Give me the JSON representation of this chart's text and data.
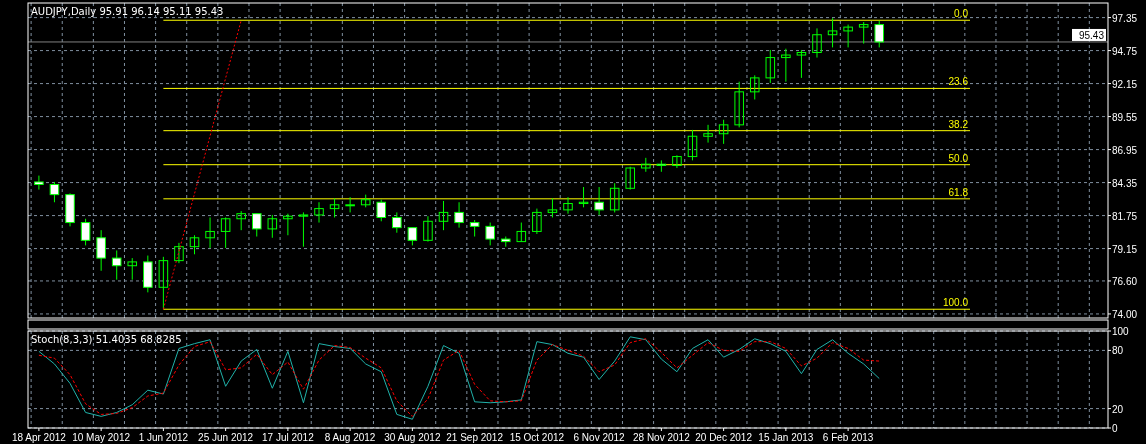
{
  "chart_data": [
    {
      "type": "candlestick",
      "title": "AUDJPY,Daily  95.91 96.14 95.11 95.43",
      "categories": [
        null,
        null,
        null,
        null,
        null,
        null,
        null,
        null,
        null,
        null,
        null,
        null,
        null,
        null,
        null,
        null,
        null,
        null,
        null,
        null,
        null,
        null,
        null,
        null,
        null,
        null,
        null,
        null,
        null,
        null,
        null,
        null,
        null,
        null,
        null,
        null,
        null,
        null,
        null,
        null,
        null,
        null,
        null,
        null,
        null,
        null,
        null,
        null,
        null,
        null,
        null,
        null,
        null,
        null,
        null,
        null,
        null,
        null,
        null,
        null,
        null,
        null,
        null,
        null,
        null,
        null,
        null,
        null,
        null
      ],
      "color": "#00ff00",
      "ohlc": [
        [
          84.4,
          84.9,
          83.8,
          84.2
        ],
        [
          84.2,
          84.4,
          82.8,
          83.4
        ],
        [
          83.4,
          83.5,
          80.9,
          81.2
        ],
        [
          81.2,
          81.5,
          79.4,
          79.8
        ],
        [
          80.0,
          80.6,
          77.4,
          78.4
        ],
        [
          78.4,
          79.0,
          76.7,
          77.8
        ],
        [
          77.8,
          78.4,
          76.7,
          78.1
        ],
        [
          78.1,
          78.6,
          75.7,
          76.1
        ],
        [
          76.1,
          78.5,
          74.4,
          78.2
        ],
        [
          78.2,
          79.6,
          78.0,
          79.3
        ],
        [
          79.3,
          80.2,
          78.7,
          80.0
        ],
        [
          80.0,
          81.6,
          79.2,
          80.5
        ],
        [
          80.5,
          81.6,
          79.2,
          81.5
        ],
        [
          81.5,
          82.1,
          80.6,
          81.9
        ],
        [
          81.9,
          81.9,
          80.1,
          80.7
        ],
        [
          80.7,
          81.8,
          80.0,
          81.5
        ],
        [
          81.5,
          81.9,
          80.2,
          81.7
        ],
        [
          81.7,
          82.0,
          79.3,
          81.8
        ],
        [
          81.8,
          82.8,
          81.2,
          82.3
        ],
        [
          82.3,
          83.1,
          81.6,
          82.6
        ],
        [
          82.6,
          83.2,
          82.0,
          82.6
        ],
        [
          82.6,
          83.4,
          82.4,
          83.0
        ],
        [
          82.8,
          83.0,
          81.3,
          81.6
        ],
        [
          81.6,
          82.0,
          80.4,
          80.8
        ],
        [
          80.8,
          80.8,
          79.4,
          79.8
        ],
        [
          79.8,
          81.7,
          79.7,
          81.3
        ],
        [
          81.3,
          82.9,
          80.6,
          82.0
        ],
        [
          82.0,
          82.8,
          80.8,
          81.2
        ],
        [
          81.2,
          81.4,
          80.1,
          80.9
        ],
        [
          80.9,
          81.2,
          79.4,
          79.9
        ],
        [
          79.9,
          80.1,
          79.3,
          79.7
        ],
        [
          79.7,
          81.2,
          79.7,
          80.5
        ],
        [
          80.5,
          82.3,
          80.3,
          82.0
        ],
        [
          82.0,
          83.1,
          81.6,
          82.2
        ],
        [
          82.2,
          83.2,
          81.9,
          82.7
        ],
        [
          82.7,
          84.0,
          82.4,
          82.8
        ],
        [
          82.8,
          84.0,
          81.8,
          82.2
        ],
        [
          82.2,
          84.3,
          82.0,
          83.9
        ],
        [
          83.9,
          85.6,
          83.8,
          85.5
        ],
        [
          85.5,
          86.3,
          85.2,
          85.8
        ],
        [
          85.8,
          86.1,
          85.2,
          85.7
        ],
        [
          85.7,
          86.5,
          85.5,
          86.4
        ],
        [
          86.4,
          88.5,
          86.1,
          88.0
        ],
        [
          88.0,
          88.9,
          87.5,
          88.2
        ],
        [
          88.2,
          89.3,
          87.4,
          88.9
        ],
        [
          88.9,
          92.3,
          88.7,
          91.5
        ],
        [
          91.5,
          92.8,
          90.9,
          92.6
        ],
        [
          92.6,
          94.8,
          92.2,
          94.2
        ],
        [
          94.2,
          94.9,
          92.3,
          94.4
        ],
        [
          94.4,
          94.8,
          92.6,
          94.6
        ],
        [
          94.6,
          96.5,
          94.2,
          96.0
        ],
        [
          96.0,
          97.3,
          95.0,
          96.3
        ],
        [
          96.3,
          96.8,
          95.0,
          96.6
        ],
        [
          96.6,
          97.0,
          95.3,
          96.8
        ],
        [
          96.8,
          97.1,
          95.0,
          95.43
        ],
        null,
        null,
        null,
        null,
        null,
        null,
        null,
        null,
        null,
        null,
        null,
        null,
        null,
        null
      ],
      "series": [
        {
          "type": "line",
          "color": "#ff0000",
          "line_style": "dotted",
          "values": [
            null,
            null,
            null,
            null,
            null,
            null,
            null,
            null,
            74.37,
            null,
            null,
            null,
            null,
            97.14,
            null,
            null,
            null,
            null,
            null,
            null,
            null,
            null,
            null,
            null,
            null,
            null,
            null,
            null,
            null,
            null,
            null,
            null,
            null,
            null,
            null,
            null,
            null,
            null,
            null,
            null,
            null,
            null,
            null,
            null,
            null,
            null,
            null,
            null,
            null,
            null,
            null,
            null,
            null,
            null,
            null,
            null,
            null,
            null,
            null,
            null,
            null,
            null,
            null,
            null,
            null,
            null,
            null,
            null,
            null
          ]
        }
      ],
      "ylim": [
        73.68,
        98.5
      ],
      "yticks": [
        {
          "value": 74,
          "label": "74.00"
        },
        {
          "value": 76.6,
          "label": "76.60"
        },
        79.15,
        81.75,
        84.35,
        86.95,
        89.55,
        92.15,
        94.75,
        97.35
      ],
      "ref_lines": [
        {
          "axis": "y",
          "value": 97.14,
          "color": "#ffff00"
        },
        {
          "axis": "y",
          "value": 91.77,
          "color": "#ffff00"
        },
        {
          "axis": "y",
          "value": 88.44,
          "color": "#ffff00"
        },
        {
          "axis": "y",
          "value": 85.76,
          "color": "#ffff00"
        },
        {
          "axis": "y",
          "value": 83.07,
          "color": "#ffff00"
        },
        {
          "axis": "y",
          "value": 74.37,
          "color": "#ffff00"
        },
        {
          "axis": "y",
          "value": 95.43,
          "label": "95.43",
          "color": "#808080"
        }
      ],
      "annotations": [
        {
          "text": "0.0",
          "y": 97.14
        },
        {
          "text": "23.6",
          "y": 91.77
        },
        {
          "text": "38.2",
          "y": 88.44
        },
        {
          "text": "50.0",
          "y": 85.76
        },
        {
          "text": "61.8",
          "y": 83.07
        },
        {
          "text": "100.0",
          "y": 74.37
        }
      ],
      "grid": true,
      "tick_labels": "y"
    },
    {
      "type": "line",
      "title": "Stoch(8,3,3) 51.4035 68.8285",
      "categories": [
        "18 Apr 2012",
        null,
        null,
        null,
        "10 May 2012",
        null,
        null,
        null,
        "1 Jun 2012",
        null,
        null,
        null,
        "25 Jun 2012",
        null,
        null,
        null,
        "17 Jul 2012",
        null,
        null,
        null,
        "8 Aug 2012",
        null,
        null,
        null,
        "30 Aug 2012",
        null,
        null,
        null,
        "21 Sep 2012",
        null,
        null,
        null,
        "15 Oct 2012",
        null,
        null,
        null,
        "6 Nov 2012",
        null,
        null,
        null,
        "28 Nov 2012",
        null,
        null,
        null,
        "20 Dec 2012",
        null,
        null,
        null,
        "15 Jan 2013",
        null,
        null,
        null,
        "6 Feb 2013",
        null,
        null,
        null,
        null,
        null,
        null,
        null,
        null,
        null,
        null,
        null,
        null,
        null,
        null,
        null,
        null
      ],
      "series": [
        {
          "color": "#20b2aa",
          "line_style": "solid",
          "values": [
            79,
            66,
            46,
            16,
            12,
            16,
            24,
            39,
            35,
            82,
            87,
            91,
            43,
            69,
            81,
            41,
            79,
            26,
            87,
            84,
            82,
            66,
            58,
            14,
            9,
            43,
            85,
            77,
            27,
            26,
            27,
            29,
            89,
            86,
            77,
            73,
            50,
            69,
            94,
            91,
            71,
            58,
            82,
            91,
            73,
            81,
            92,
            87,
            79,
            56,
            81,
            91,
            77,
            66,
            51,
            null,
            null,
            null,
            null,
            null,
            null,
            null,
            null,
            null,
            null,
            null,
            null,
            null,
            null
          ]
        },
        {
          "color": "#ff0000",
          "line_style": "dashed",
          "values": [
            75,
            72,
            55,
            25,
            14,
            15,
            21,
            33,
            36,
            65,
            84,
            89,
            60,
            62,
            76,
            55,
            68,
            40,
            70,
            85,
            83,
            72,
            62,
            28,
            12,
            30,
            70,
            80,
            45,
            28,
            27,
            28,
            70,
            86,
            80,
            74,
            58,
            65,
            88,
            92,
            78,
            62,
            75,
            88,
            80,
            79,
            89,
            89,
            82,
            64,
            72,
            88,
            82,
            70,
            69,
            null,
            null,
            null,
            null,
            null,
            null,
            null,
            null,
            null,
            null,
            null,
            null,
            null,
            null
          ]
        }
      ],
      "ylim": [
        0,
        100
      ],
      "yticks": [
        0,
        20,
        80,
        100
      ],
      "grid": true
    }
  ]
}
